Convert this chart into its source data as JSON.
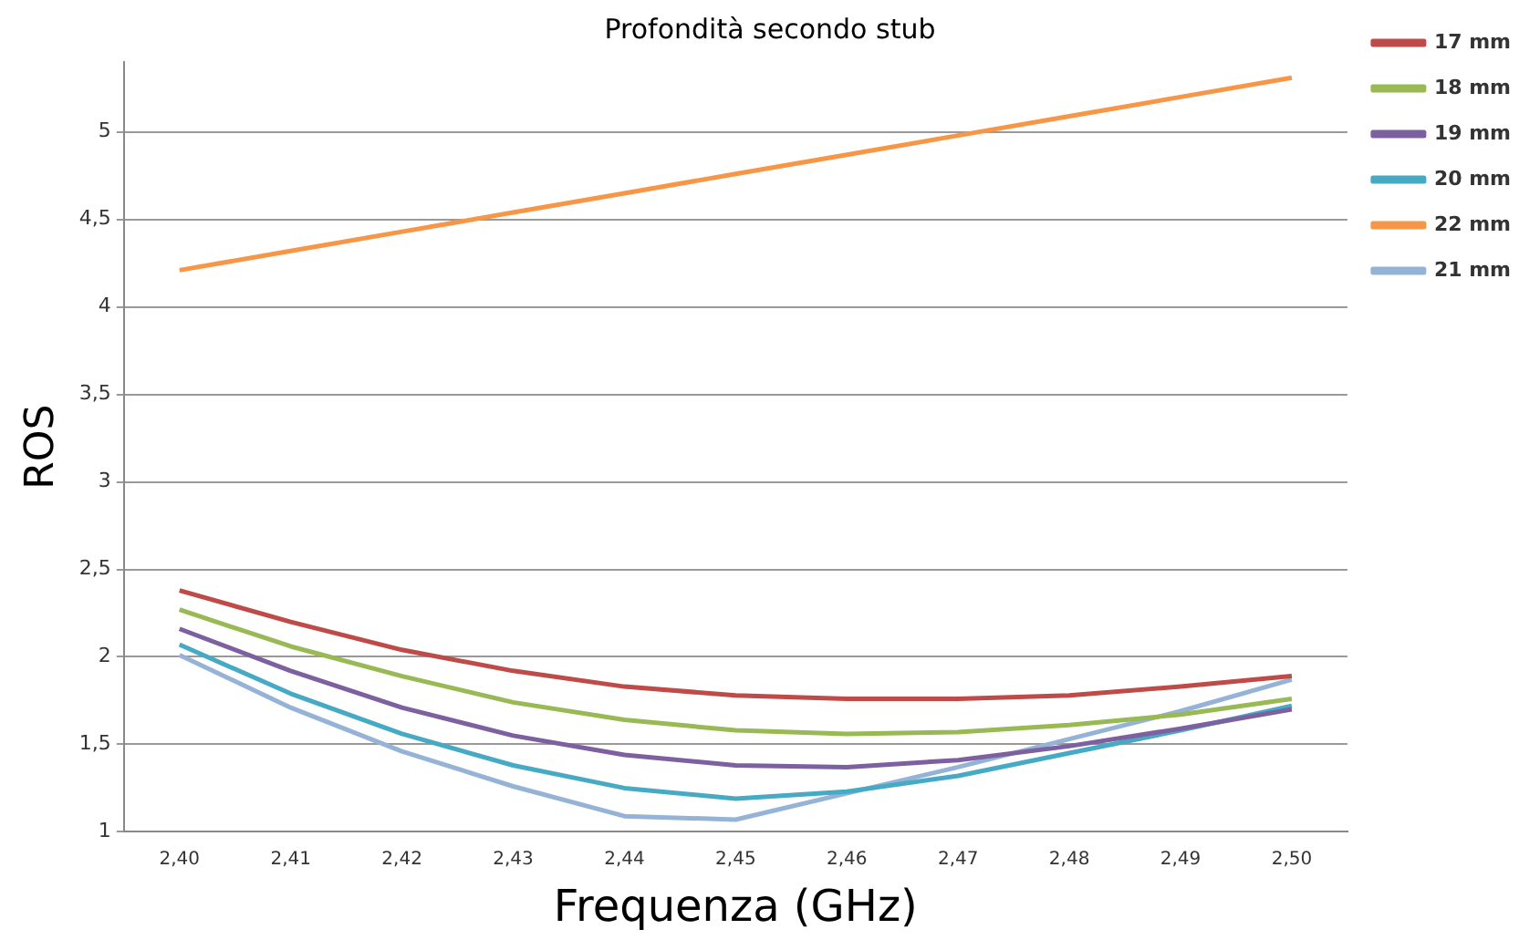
{
  "chart_data": {
    "type": "line",
    "title": "Profondità secondo stub",
    "xlabel": "Frequenza (GHz)",
    "ylabel": "ROS",
    "categories": [
      "2,40",
      "2,41",
      "2,42",
      "2,43",
      "2,44",
      "2,45",
      "2,46",
      "2,47",
      "2,48",
      "2,49",
      "2,50"
    ],
    "series": [
      {
        "name": "17 mm",
        "color": "#be4b48",
        "values": [
          2.38,
          2.2,
          2.04,
          1.92,
          1.83,
          1.78,
          1.76,
          1.76,
          1.78,
          1.83,
          1.89
        ]
      },
      {
        "name": "18 mm",
        "color": "#98b954",
        "values": [
          2.27,
          2.06,
          1.89,
          1.74,
          1.64,
          1.58,
          1.56,
          1.57,
          1.61,
          1.67,
          1.76
        ]
      },
      {
        "name": "19 mm",
        "color": "#7d60a0",
        "values": [
          2.16,
          1.92,
          1.71,
          1.55,
          1.44,
          1.38,
          1.37,
          1.41,
          1.49,
          1.59,
          1.7
        ]
      },
      {
        "name": "20 mm",
        "color": "#46aac5",
        "values": [
          2.07,
          1.79,
          1.56,
          1.38,
          1.25,
          1.19,
          1.23,
          1.32,
          1.45,
          1.58,
          1.72
        ]
      },
      {
        "name": "22 mm",
        "color": "#f79646",
        "values": [
          4.21,
          4.32,
          4.43,
          4.54,
          4.65,
          4.76,
          4.87,
          4.98,
          5.09,
          5.2,
          5.31
        ]
      },
      {
        "name": "21 mm",
        "color": "#95b3d7",
        "values": [
          2.01,
          1.71,
          1.46,
          1.26,
          1.09,
          1.07,
          1.22,
          1.37,
          1.53,
          1.69,
          1.87
        ]
      }
    ],
    "ylim": [
      1,
      5.4
    ],
    "yticks": [
      {
        "value": 1,
        "label": "1"
      },
      {
        "value": 1.5,
        "label": "1,5"
      },
      {
        "value": 2,
        "label": "2"
      },
      {
        "value": 2.5,
        "label": "2,5"
      },
      {
        "value": 3,
        "label": "3"
      },
      {
        "value": 3.5,
        "label": "3,5"
      },
      {
        "value": 4,
        "label": "4"
      },
      {
        "value": 4.5,
        "label": "4,5"
      },
      {
        "value": 5,
        "label": "5"
      }
    ],
    "grid": "y",
    "legend": "top right",
    "marker": "none",
    "line_style": "solid"
  }
}
